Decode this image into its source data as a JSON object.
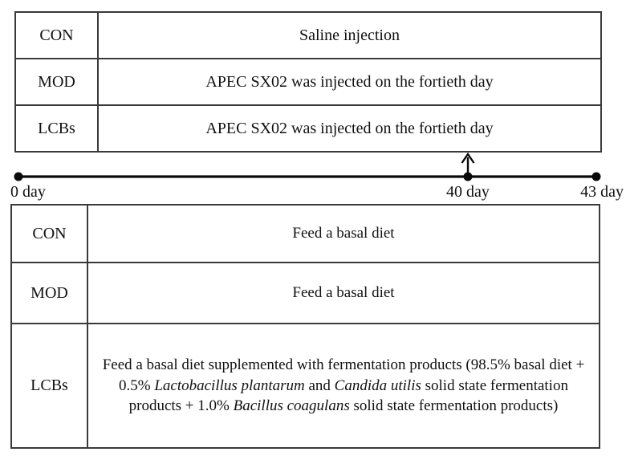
{
  "figure": {
    "injection_table": {
      "rows": [
        {
          "group": "CON",
          "treatment": "Saline injection"
        },
        {
          "group": "MOD",
          "treatment": "APEC SX02 was injected on the fortieth day"
        },
        {
          "group": "LCBs",
          "treatment": "APEC SX02 was injected on the fortieth day"
        }
      ]
    },
    "timeline": {
      "start_label": "0 day",
      "event_label": "40 day",
      "end_label": "43 day"
    },
    "diet_table": {
      "rows": [
        {
          "group": "CON",
          "diet": [
            {
              "text": "Feed a basal diet",
              "italic": false
            }
          ]
        },
        {
          "group": "MOD",
          "diet": [
            {
              "text": "Feed a basal diet",
              "italic": false
            }
          ]
        },
        {
          "group": "LCBs",
          "diet": [
            {
              "text": "Feed a basal diet supplemented with fermentation products (98.5% basal diet + 0.5% ",
              "italic": false
            },
            {
              "text": "Lactobacillus plantarum",
              "italic": true
            },
            {
              "text": " and ",
              "italic": false
            },
            {
              "text": "Candida utilis",
              "italic": true
            },
            {
              "text": " solid state fermentation products + 1.0% ",
              "italic": false
            },
            {
              "text": "Bacillus coagulans",
              "italic": true
            },
            {
              "text": " solid state fermentation products)",
              "italic": false
            }
          ]
        }
      ]
    },
    "colors": {
      "background": "#ffffff",
      "text": "#111111",
      "border": "#3a3a3a",
      "timeline": "#0a0a0a"
    }
  }
}
